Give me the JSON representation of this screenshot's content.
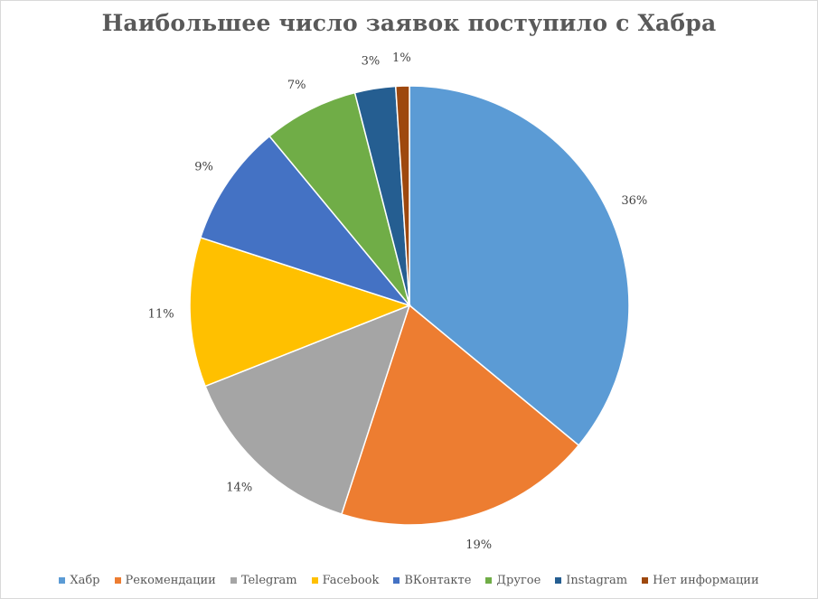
{
  "chart_data": {
    "type": "pie",
    "title": "Наибольшее число заявок поступило с Хабра",
    "categories": [
      "Хабр",
      "Рекомендации",
      "Telegram",
      "Facebook",
      "ВКонтакте",
      "Другое",
      "Instagram",
      "Нет информации"
    ],
    "values": [
      36,
      19,
      14,
      11,
      9,
      7,
      3,
      1
    ],
    "labels": [
      "36%",
      "19%",
      "14%",
      "11%",
      "9%",
      "7%",
      "3%",
      "1%"
    ],
    "colors": [
      "#5b9bd5",
      "#ed7d31",
      "#a5a5a5",
      "#ffc000",
      "#4472c4",
      "#70ad47",
      "#255e91",
      "#9e480e"
    ],
    "legend_position": "bottom",
    "start_angle": "12 o'clock, clockwise"
  }
}
